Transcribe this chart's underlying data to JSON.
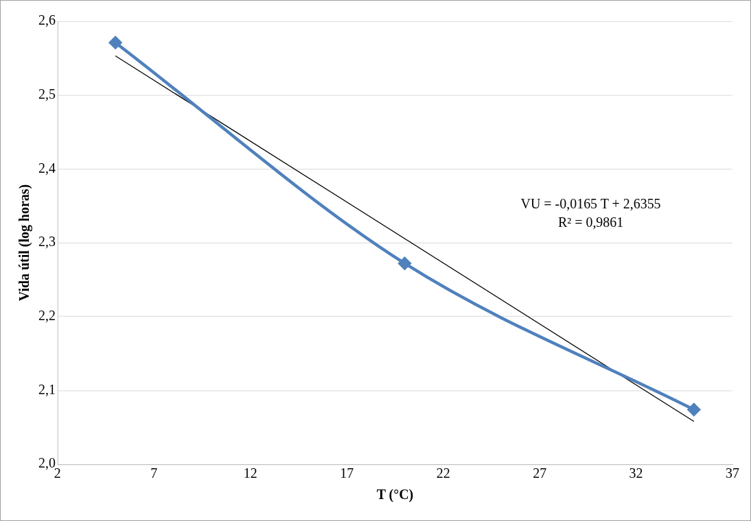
{
  "chart_data": {
    "type": "line",
    "xlabel": "T (°C)",
    "ylabel": "Vida útil (log horas)",
    "x": [
      5,
      20,
      35
    ],
    "series": [
      {
        "name": null,
        "color": "#4f81bd",
        "values": [
          2.571,
          2.272,
          2.074
        ],
        "marker": "diamond"
      },
      {
        "type": "line",
        "color": "#000000",
        "x": [
          5,
          35
        ],
        "values": [
          2.553,
          2.058
        ],
        "marker": "none"
      }
    ],
    "xlim": [
      2,
      37
    ],
    "xticks": [
      2,
      7,
      12,
      17,
      22,
      27,
      32,
      37
    ],
    "ylim": [
      2,
      2.6
    ],
    "yticks": [
      {
        "value": 2,
        "label": "2,0"
      },
      {
        "value": 2.1,
        "label": "2,1"
      },
      {
        "value": 2.2,
        "label": "2,2"
      },
      {
        "value": 2.3,
        "label": "2,3"
      },
      {
        "value": 2.4,
        "label": "2,4"
      },
      {
        "value": 2.5,
        "label": "2,5"
      },
      {
        "value": 2.6,
        "label": "2,6"
      }
    ],
    "grid": "y",
    "legend": false,
    "annotations": [
      "VU = -0,0165 T + 2,6355",
      "R² = 0,9861"
    ]
  }
}
